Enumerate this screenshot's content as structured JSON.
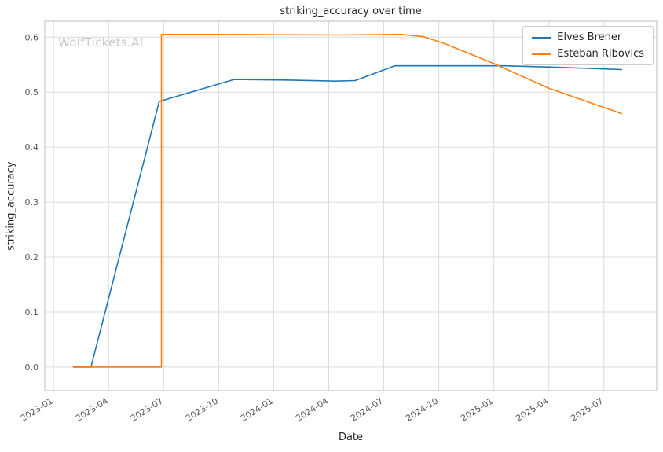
{
  "chart_data": {
    "type": "line",
    "title": "striking_accuracy over time",
    "xlabel": "Date",
    "ylabel": "striking_accuracy",
    "watermark": "WolfTickets.AI",
    "grid": true,
    "legend_position": "top-right",
    "xlim": [
      2022.96,
      2025.74
    ],
    "ylim": [
      -0.043,
      0.629
    ],
    "x_ticks": [
      {
        "value": 2023.0,
        "label": "2023-01"
      },
      {
        "value": 2023.25,
        "label": "2023-04"
      },
      {
        "value": 2023.5,
        "label": "2023-07"
      },
      {
        "value": 2023.75,
        "label": "2023-10"
      },
      {
        "value": 2024.0,
        "label": "2024-01"
      },
      {
        "value": 2024.25,
        "label": "2024-04"
      },
      {
        "value": 2024.5,
        "label": "2024-07"
      },
      {
        "value": 2024.75,
        "label": "2024-10"
      },
      {
        "value": 2025.0,
        "label": "2025-01"
      },
      {
        "value": 2025.25,
        "label": "2025-04"
      },
      {
        "value": 2025.5,
        "label": "2025-07"
      }
    ],
    "y_ticks": [
      {
        "value": 0.0,
        "label": "0.0"
      },
      {
        "value": 0.1,
        "label": "0.1"
      },
      {
        "value": 0.2,
        "label": "0.2"
      },
      {
        "value": 0.3,
        "label": "0.3"
      },
      {
        "value": 0.4,
        "label": "0.4"
      },
      {
        "value": 0.5,
        "label": "0.5"
      },
      {
        "value": 0.6,
        "label": "0.6"
      }
    ],
    "series": [
      {
        "name": "Elves Brener",
        "color": "#1f77b4",
        "points": [
          [
            2023.09,
            0.0
          ],
          [
            2023.17,
            0.0
          ],
          [
            2023.48,
            0.483
          ],
          [
            2023.82,
            0.523
          ],
          [
            2024.05,
            0.522
          ],
          [
            2024.28,
            0.52
          ],
          [
            2024.37,
            0.521
          ],
          [
            2024.55,
            0.548
          ],
          [
            2025.05,
            0.548
          ],
          [
            2025.3,
            0.545
          ],
          [
            2025.58,
            0.541
          ]
        ]
      },
      {
        "name": "Esteban Ribovics",
        "color": "#ff7f0e",
        "points": [
          [
            2023.09,
            0.0
          ],
          [
            2023.49,
            0.0
          ],
          [
            2023.49,
            0.605
          ],
          [
            2023.75,
            0.605
          ],
          [
            2024.3,
            0.604
          ],
          [
            2024.58,
            0.605
          ],
          [
            2024.68,
            0.601
          ],
          [
            2024.78,
            0.588
          ],
          [
            2025.0,
            0.552
          ],
          [
            2025.25,
            0.507
          ],
          [
            2025.58,
            0.461
          ]
        ]
      }
    ]
  }
}
